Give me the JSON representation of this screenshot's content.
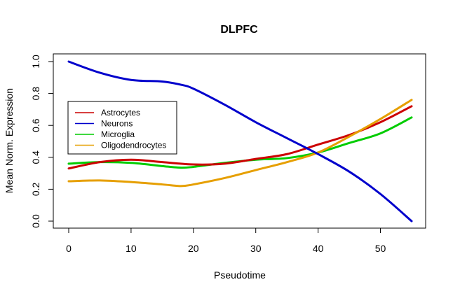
{
  "chart_data": {
    "type": "line",
    "title": "DLPFC",
    "xlabel": "Pseudotime",
    "ylabel": "Mean Norm. Expression",
    "xlim": [
      0,
      55
    ],
    "ylim": [
      0,
      1.0
    ],
    "xticks": [
      0,
      10,
      20,
      30,
      40,
      50
    ],
    "yticks": [
      0.0,
      0.2,
      0.4,
      0.6,
      0.8,
      1.0
    ],
    "xtick_labels": [
      "0",
      "10",
      "20",
      "30",
      "40",
      "50"
    ],
    "ytick_labels": [
      "0.0",
      "0.2",
      "0.4",
      "0.6",
      "0.8",
      "1.0"
    ],
    "grid": false,
    "legend_position": "left",
    "series": [
      {
        "name": "Astrocytes",
        "color": "#cc0000",
        "x": [
          0,
          5,
          10,
          15,
          20,
          25,
          30,
          35,
          40,
          45,
          50,
          55
        ],
        "y": [
          0.33,
          0.37,
          0.385,
          0.37,
          0.355,
          0.36,
          0.39,
          0.42,
          0.48,
          0.54,
          0.62,
          0.72
        ]
      },
      {
        "name": "Neurons",
        "color": "#0000cc",
        "x": [
          0,
          5,
          10,
          15,
          18,
          20,
          25,
          30,
          35,
          40,
          45,
          50,
          55
        ],
        "y": [
          1.0,
          0.93,
          0.885,
          0.875,
          0.855,
          0.83,
          0.73,
          0.62,
          0.52,
          0.42,
          0.31,
          0.17,
          0.0
        ]
      },
      {
        "name": "Microglia",
        "color": "#00cc00",
        "x": [
          0,
          5,
          10,
          15,
          18,
          20,
          25,
          30,
          35,
          40,
          45,
          50,
          55
        ],
        "y": [
          0.36,
          0.37,
          0.365,
          0.345,
          0.335,
          0.34,
          0.365,
          0.385,
          0.395,
          0.43,
          0.49,
          0.55,
          0.65
        ]
      },
      {
        "name": "Oligodendrocytes",
        "color": "#e69f00",
        "x": [
          0,
          5,
          10,
          15,
          18,
          20,
          25,
          30,
          35,
          40,
          45,
          50,
          55
        ],
        "y": [
          0.25,
          0.255,
          0.245,
          0.23,
          0.22,
          0.23,
          0.27,
          0.32,
          0.37,
          0.43,
          0.53,
          0.64,
          0.76
        ]
      }
    ]
  }
}
